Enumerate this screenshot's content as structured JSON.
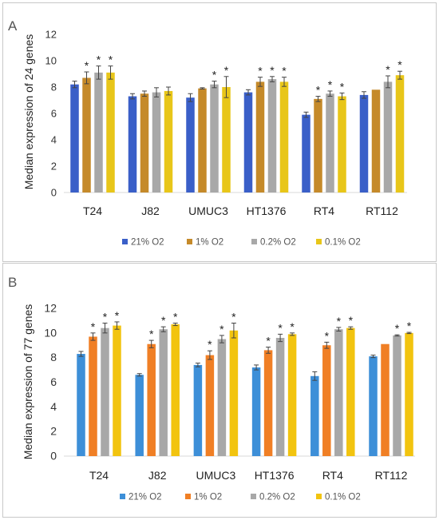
{
  "chart_data": [
    {
      "type": "bar",
      "panel_label": "A",
      "ylabel": "Median expression of 24 genes",
      "ylim": [
        0,
        12
      ],
      "yticks": [
        0,
        2,
        4,
        6,
        8,
        10,
        12
      ],
      "grid": false,
      "legend_position": "bottom",
      "categories": [
        "T24",
        "J82",
        "UMUC3",
        "HT1376",
        "RT4",
        "RT112"
      ],
      "series": [
        {
          "name": "21% O2",
          "color": "#3a5fc8",
          "values": [
            8.2,
            7.3,
            7.2,
            7.6,
            5.9,
            7.4
          ],
          "errors": [
            0.25,
            0.2,
            0.3,
            0.2,
            0.2,
            0.25
          ]
        },
        {
          "name": "1% O2",
          "color": "#c58a2a",
          "values": [
            8.7,
            7.5,
            7.9,
            8.4,
            7.1,
            7.8
          ],
          "errors": [
            0.45,
            0.2,
            0.05,
            0.35,
            0.2,
            0.0
          ]
        },
        {
          "name": "0.2% O2",
          "color": "#a8a8a8",
          "values": [
            9.1,
            7.6,
            8.2,
            8.6,
            7.5,
            8.4
          ],
          "errors": [
            0.5,
            0.35,
            0.25,
            0.2,
            0.2,
            0.45
          ]
        },
        {
          "name": "0.1% O2",
          "color": "#e8c619",
          "values": [
            9.1,
            7.7,
            8.0,
            8.4,
            7.3,
            8.9
          ],
          "errors": [
            0.5,
            0.3,
            0.8,
            0.35,
            0.25,
            0.3
          ]
        }
      ],
      "annotations": [
        {
          "category": 0,
          "series": 1,
          "text": "*"
        },
        {
          "category": 0,
          "series": 2,
          "text": "*"
        },
        {
          "category": 0,
          "series": 3,
          "text": "*"
        },
        {
          "category": 2,
          "series": 2,
          "text": "*"
        },
        {
          "category": 2,
          "series": 3,
          "text": "*"
        },
        {
          "category": 3,
          "series": 1,
          "text": "*"
        },
        {
          "category": 3,
          "series": 2,
          "text": "*"
        },
        {
          "category": 3,
          "series": 3,
          "text": "*"
        },
        {
          "category": 4,
          "series": 1,
          "text": "*"
        },
        {
          "category": 4,
          "series": 2,
          "text": "*"
        },
        {
          "category": 4,
          "series": 3,
          "text": "*"
        },
        {
          "category": 5,
          "series": 2,
          "text": "*"
        },
        {
          "category": 5,
          "series": 3,
          "text": "*"
        }
      ]
    },
    {
      "type": "bar",
      "panel_label": "B",
      "ylabel": "Median expression of 77 genes",
      "ylim": [
        0,
        12
      ],
      "yticks": [
        0,
        2,
        4,
        6,
        8,
        10,
        12
      ],
      "grid": false,
      "legend_position": "bottom",
      "categories": [
        "T24",
        "J82",
        "UMUC3",
        "HT1376",
        "RT4",
        "RT112"
      ],
      "series": [
        {
          "name": "21% O2",
          "color": "#3d8fd8",
          "values": [
            8.3,
            6.6,
            7.4,
            7.2,
            6.5,
            8.1
          ],
          "errors": [
            0.2,
            0.1,
            0.15,
            0.2,
            0.35,
            0.1
          ]
        },
        {
          "name": "1% O2",
          "color": "#f07f25",
          "values": [
            9.7,
            9.1,
            8.2,
            8.6,
            9.0,
            9.1
          ],
          "errors": [
            0.3,
            0.3,
            0.35,
            0.25,
            0.25,
            0.0
          ]
        },
        {
          "name": "0.2% O2",
          "color": "#a8a8a8",
          "values": [
            10.4,
            10.3,
            9.5,
            9.6,
            10.3,
            9.8
          ],
          "errors": [
            0.4,
            0.2,
            0.3,
            0.3,
            0.15,
            0.05
          ]
        },
        {
          "name": "0.1% O2",
          "color": "#f2c40f",
          "values": [
            10.6,
            10.7,
            10.2,
            9.9,
            10.4,
            10.0
          ],
          "errors": [
            0.3,
            0.1,
            0.6,
            0.1,
            0.1,
            0.05
          ]
        }
      ],
      "annotations": [
        {
          "category": 0,
          "series": 1,
          "text": "*"
        },
        {
          "category": 0,
          "series": 2,
          "text": "*"
        },
        {
          "category": 0,
          "series": 3,
          "text": "*"
        },
        {
          "category": 1,
          "series": 1,
          "text": "*"
        },
        {
          "category": 1,
          "series": 2,
          "text": "*"
        },
        {
          "category": 1,
          "series": 3,
          "text": "*"
        },
        {
          "category": 2,
          "series": 1,
          "text": "*"
        },
        {
          "category": 2,
          "series": 2,
          "text": "*"
        },
        {
          "category": 2,
          "series": 3,
          "text": "*"
        },
        {
          "category": 3,
          "series": 1,
          "text": "*"
        },
        {
          "category": 3,
          "series": 2,
          "text": "*"
        },
        {
          "category": 3,
          "series": 3,
          "text": "*"
        },
        {
          "category": 4,
          "series": 1,
          "text": "*"
        },
        {
          "category": 4,
          "series": 2,
          "text": "*"
        },
        {
          "category": 4,
          "series": 3,
          "text": "*"
        },
        {
          "category": 5,
          "series": 2,
          "text": "*"
        },
        {
          "category": 5,
          "series": 3,
          "text": "*"
        }
      ]
    }
  ]
}
